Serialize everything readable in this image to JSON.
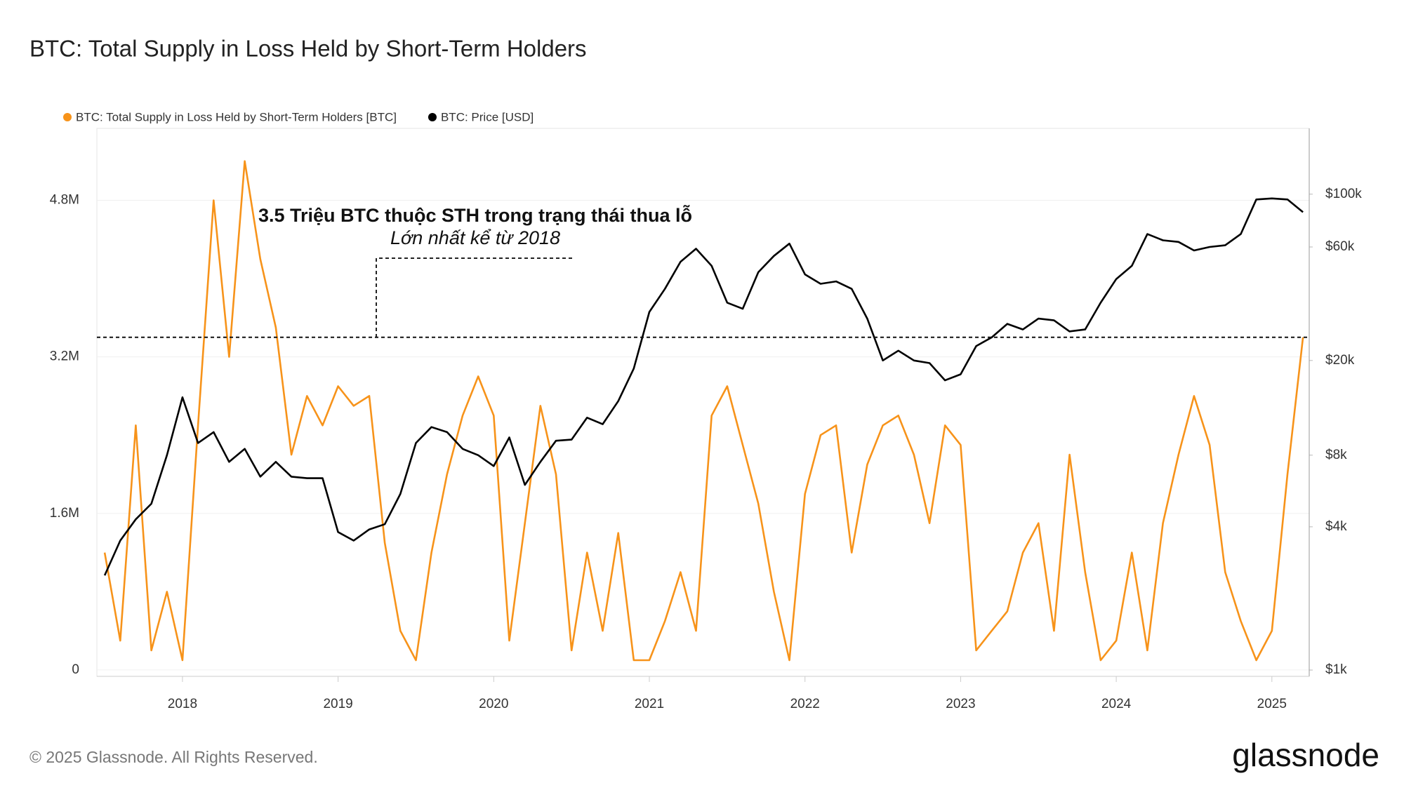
{
  "chart_data": {
    "type": "line",
    "title": "BTC: Total Supply in Loss Held by Short-Term Holders",
    "annotation_title": "3.5 Triệu BTC thuộc STH trong trạng thái thua lỗ",
    "annotation_subtitle": "Lớn nhất kể từ 2018",
    "reference_value": 3400000,
    "footer": "© 2025 Glassnode. All Rights Reserved.",
    "logo": "glassnode",
    "legend": "top-left",
    "grid": true,
    "x": [
      2017.5,
      2017.6,
      2017.7,
      2017.8,
      2017.9,
      2018.0,
      2018.1,
      2018.2,
      2018.3,
      2018.4,
      2018.5,
      2018.6,
      2018.7,
      2018.8,
      2018.9,
      2019.0,
      2019.1,
      2019.2,
      2019.3,
      2019.4,
      2019.5,
      2019.6,
      2019.7,
      2019.8,
      2019.9,
      2020.0,
      2020.1,
      2020.2,
      2020.3,
      2020.4,
      2020.5,
      2020.6,
      2020.7,
      2020.8,
      2020.9,
      2021.0,
      2021.1,
      2021.2,
      2021.3,
      2021.4,
      2021.5,
      2021.6,
      2021.7,
      2021.8,
      2021.9,
      2022.0,
      2022.1,
      2022.2,
      2022.3,
      2022.4,
      2022.5,
      2022.6,
      2022.7,
      2022.8,
      2022.9,
      2023.0,
      2023.1,
      2023.2,
      2023.3,
      2023.4,
      2023.5,
      2023.6,
      2023.7,
      2023.8,
      2023.9,
      2024.0,
      2024.1,
      2024.2,
      2024.3,
      2024.4,
      2024.5,
      2024.6,
      2024.7,
      2024.8,
      2024.9,
      2025.0,
      2025.1,
      2025.2
    ],
    "xlim": [
      2017.45,
      2025.24
    ],
    "xticks": [
      2018,
      2019,
      2020,
      2021,
      2022,
      2023,
      2024,
      2025
    ],
    "ylim": [
      -65000,
      5535000
    ],
    "yticks": [
      0,
      {
        "value": 1600000,
        "label": "1.6M"
      },
      {
        "value": 3200000,
        "label": "3.2M"
      },
      {
        "value": 4800000,
        "label": "4.8M"
      }
    ],
    "y2lim": [
      941,
      189000
    ],
    "y2log": true,
    "y2ticks": [
      {
        "value": 1000,
        "label": "$1k"
      },
      {
        "value": 4000,
        "label": "$4k"
      },
      {
        "value": 8000,
        "label": "$8k"
      },
      {
        "value": 20000,
        "label": "$20k"
      },
      {
        "value": 60000,
        "label": "$60k"
      },
      {
        "value": 100000,
        "label": "$100k"
      }
    ],
    "series": [
      {
        "name": "BTC: Total Supply in Loss Held by Short-Term Holders [BTC]",
        "color": "#f7931a",
        "values": [
          1200000,
          300000,
          2500000,
          200000,
          800000,
          100000,
          2500000,
          4800000,
          3200000,
          5200000,
          4200000,
          3500000,
          2200000,
          2800000,
          2500000,
          2900000,
          2700000,
          2800000,
          1300000,
          400000,
          100000,
          1200000,
          2000000,
          2600000,
          3000000,
          2600000,
          300000,
          1500000,
          2700000,
          2000000,
          200000,
          1200000,
          400000,
          1400000,
          100000,
          100000,
          500000,
          1000000,
          400000,
          2600000,
          2900000,
          2300000,
          1700000,
          800000,
          100000,
          1800000,
          2400000,
          2500000,
          1200000,
          2100000,
          2500000,
          2600000,
          2200000,
          1500000,
          2500000,
          2300000,
          200000,
          400000,
          600000,
          1200000,
          1500000,
          400000,
          2200000,
          1000000,
          100000,
          300000,
          1200000,
          200000,
          1500000,
          2200000,
          2800000,
          2300000,
          1000000,
          500000,
          100000,
          400000,
          2000000,
          3400000
        ]
      },
      {
        "name": "BTC: Price [USD]",
        "color": "#000000",
        "axis": "y2",
        "values": [
          2500,
          3500,
          4300,
          5000,
          8000,
          14000,
          9000,
          10000,
          7500,
          8500,
          6500,
          7500,
          6500,
          6400,
          6400,
          3800,
          3500,
          3900,
          4100,
          5500,
          9000,
          10500,
          10000,
          8500,
          8000,
          7200,
          9500,
          6000,
          7500,
          9200,
          9300,
          11500,
          10800,
          13500,
          18500,
          32000,
          40000,
          52000,
          59000,
          50000,
          35000,
          33000,
          47000,
          55000,
          62000,
          46000,
          42000,
          43000,
          40000,
          30000,
          20000,
          22000,
          20000,
          19500,
          16500,
          17500,
          23000,
          25000,
          28500,
          27000,
          30000,
          29500,
          26500,
          27000,
          35000,
          44000,
          50000,
          68000,
          64000,
          63000,
          58000,
          60000,
          61000,
          68000,
          95000,
          96000,
          95000,
          84000
        ]
      }
    ]
  }
}
